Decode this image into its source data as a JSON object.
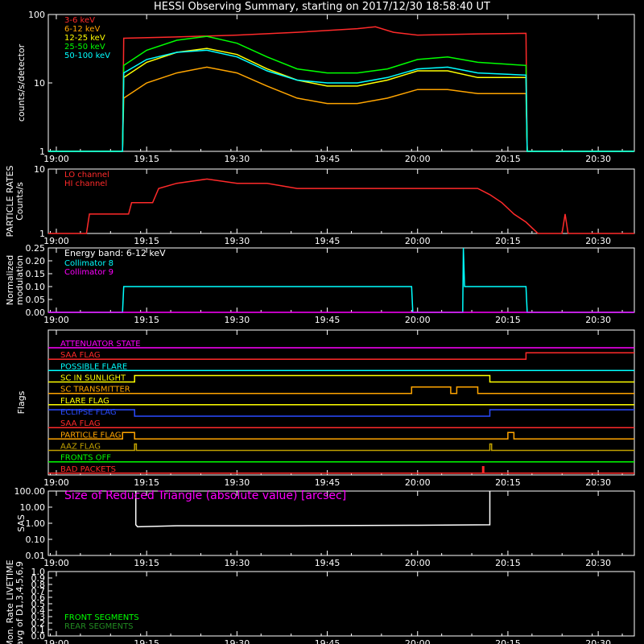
{
  "title": "HESSI Observing Summary, starting on 2017/12/30 18:58:40 UT",
  "x_ticks": [
    "19:00",
    "19:15",
    "19:30",
    "19:45",
    "20:00",
    "20:15",
    "20:30"
  ],
  "chart_data": [
    {
      "type": "line",
      "ylabel": "counts/s/detector",
      "yscale": "log",
      "ylim": [
        1,
        100
      ],
      "y_tick_labels": [
        "1",
        "10",
        "100"
      ],
      "xlim_minutes": [
        -1.33,
        96.0
      ],
      "series": [
        {
          "name": "3-6 keV",
          "color": "#ff2a2a",
          "points": [
            [
              -1.33,
              1
            ],
            [
              11,
              1
            ],
            [
              11.2,
              45
            ],
            [
              20,
              47
            ],
            [
              30,
              50
            ],
            [
              40,
              55
            ],
            [
              50,
              62
            ],
            [
              53,
              66
            ],
            [
              56,
              55
            ],
            [
              60,
              50
            ],
            [
              70,
              52
            ],
            [
              78,
              53
            ],
            [
              78.2,
              1
            ],
            [
              96,
              1
            ]
          ]
        },
        {
          "name": "6-12 keV",
          "color": "#ffa500",
          "points": [
            [
              -1.33,
              1
            ],
            [
              11,
              1
            ],
            [
              11.2,
              6
            ],
            [
              15,
              10
            ],
            [
              20,
              14
            ],
            [
              25,
              17
            ],
            [
              30,
              14
            ],
            [
              35,
              9
            ],
            [
              40,
              6
            ],
            [
              45,
              5
            ],
            [
              50,
              5
            ],
            [
              55,
              6
            ],
            [
              60,
              8
            ],
            [
              65,
              8
            ],
            [
              70,
              7
            ],
            [
              78,
              7
            ],
            [
              78.2,
              1
            ],
            [
              96,
              1
            ]
          ]
        },
        {
          "name": "12-25 keV",
          "color": "#ffff00",
          "points": [
            [
              -1.33,
              1
            ],
            [
              11,
              1
            ],
            [
              11.2,
              12
            ],
            [
              15,
              20
            ],
            [
              20,
              28
            ],
            [
              25,
              32
            ],
            [
              30,
              26
            ],
            [
              35,
              16
            ],
            [
              40,
              11
            ],
            [
              45,
              9
            ],
            [
              50,
              9
            ],
            [
              55,
              11
            ],
            [
              60,
              15
            ],
            [
              65,
              15
            ],
            [
              70,
              12
            ],
            [
              78,
              12
            ],
            [
              78.2,
              1
            ],
            [
              96,
              1
            ]
          ]
        },
        {
          "name": "25-50 keV",
          "color": "#00ff00",
          "points": [
            [
              -1.33,
              1
            ],
            [
              11,
              1
            ],
            [
              11.2,
              18
            ],
            [
              15,
              30
            ],
            [
              20,
              42
            ],
            [
              25,
              48
            ],
            [
              30,
              38
            ],
            [
              35,
              24
            ],
            [
              40,
              16
            ],
            [
              45,
              14
            ],
            [
              50,
              14
            ],
            [
              55,
              16
            ],
            [
              60,
              22
            ],
            [
              65,
              24
            ],
            [
              70,
              20
            ],
            [
              78,
              18
            ],
            [
              78.2,
              1
            ],
            [
              96,
              1
            ]
          ]
        },
        {
          "name": "50-100 keV",
          "color": "#00ffff",
          "points": [
            [
              -1.33,
              1
            ],
            [
              11,
              1
            ],
            [
              11.2,
              14
            ],
            [
              15,
              22
            ],
            [
              20,
              28
            ],
            [
              25,
              30
            ],
            [
              30,
              24
            ],
            [
              35,
              15
            ],
            [
              40,
              11
            ],
            [
              45,
              10
            ],
            [
              50,
              10
            ],
            [
              55,
              12
            ],
            [
              60,
              16
            ],
            [
              65,
              17
            ],
            [
              70,
              14
            ],
            [
              78,
              13
            ],
            [
              78.2,
              1
            ],
            [
              96,
              1
            ]
          ]
        }
      ]
    },
    {
      "type": "line",
      "ylabel": "PARTICLE RATES Counts/s",
      "yscale": "log",
      "ylim": [
        1,
        10
      ],
      "y_tick_labels": [
        "1",
        "10"
      ],
      "series": [
        {
          "name": "LO channel",
          "color": "#ff2a2a",
          "points": [
            [
              -1.33,
              1
            ],
            [
              5,
              1
            ],
            [
              5.5,
              2
            ],
            [
              8,
              2
            ],
            [
              8.5,
              2
            ],
            [
              12,
              2
            ],
            [
              12.5,
              3
            ],
            [
              16,
              3
            ],
            [
              17,
              5
            ],
            [
              20,
              6
            ],
            [
              25,
              7
            ],
            [
              30,
              6
            ],
            [
              35,
              6
            ],
            [
              40,
              5
            ],
            [
              45,
              5
            ],
            [
              50,
              5
            ],
            [
              55,
              5
            ],
            [
              60,
              5
            ],
            [
              65,
              5
            ],
            [
              70,
              5
            ],
            [
              72,
              4
            ],
            [
              74,
              3
            ],
            [
              76,
              2
            ],
            [
              78,
              1.5
            ],
            [
              80,
              1
            ],
            [
              84,
              1
            ],
            [
              84.5,
              2
            ],
            [
              85,
              1
            ],
            [
              96,
              1
            ]
          ]
        },
        {
          "name": "HI channel",
          "color": "#ff2a2a",
          "points": []
        }
      ]
    },
    {
      "type": "line",
      "ylabel": "Normalized modulation",
      "ylim": [
        0,
        0.25
      ],
      "y_tick_labels": [
        "0.00",
        "0.05",
        "0.10",
        "0.15",
        "0.20",
        "0.25"
      ],
      "legend_header": "Energy band: 6-12 keV",
      "series": [
        {
          "name": "Collimator 8",
          "color": "#00ffff",
          "points": [
            [
              -1.33,
              0
            ],
            [
              11,
              0
            ],
            [
              11.2,
              0.1
            ],
            [
              20,
              0.1
            ],
            [
              30,
              0.1
            ],
            [
              40,
              0.1
            ],
            [
              50,
              0.1
            ],
            [
              59,
              0.1
            ],
            [
              59.2,
              0
            ],
            [
              67.5,
              0
            ],
            [
              67.6,
              0.25
            ],
            [
              67.8,
              0.1
            ],
            [
              78,
              0.1
            ],
            [
              78.2,
              0
            ],
            [
              96,
              0
            ]
          ]
        },
        {
          "name": "Collimator 9",
          "color": "#ff00ff",
          "points": [
            [
              -1.33,
              0
            ],
            [
              96,
              0
            ]
          ]
        }
      ]
    },
    {
      "type": "line",
      "ylabel": "Flags",
      "flags": [
        {
          "name": "ATTENUATOR STATE",
          "color": "#ff00ff",
          "steps": [
            [
              -1.33,
              0
            ],
            [
              96,
              0
            ]
          ]
        },
        {
          "name": "SAA FLAG",
          "color": "#ff2a2a",
          "steps": [
            [
              -1.33,
              0
            ],
            [
              78,
              0
            ],
            [
              78,
              1
            ],
            [
              96,
              1
            ]
          ]
        },
        {
          "name": "POSSIBLE FLARE",
          "color": "#00ffff",
          "steps": [
            [
              -1.33,
              0
            ],
            [
              96,
              0
            ]
          ]
        },
        {
          "name": "SC IN SUNLIGHT",
          "color": "#ffff00",
          "steps": [
            [
              -1.33,
              0
            ],
            [
              13,
              0
            ],
            [
              13,
              1
            ],
            [
              72,
              1
            ],
            [
              72,
              0
            ],
            [
              96,
              0
            ]
          ]
        },
        {
          "name": "SC TRANSMITTER",
          "color": "#ffa500",
          "steps": [
            [
              -1.33,
              0
            ],
            [
              59,
              0
            ],
            [
              59,
              1
            ],
            [
              65.5,
              1
            ],
            [
              65.5,
              0
            ],
            [
              66.5,
              0
            ],
            [
              66.5,
              1
            ],
            [
              70,
              1
            ],
            [
              70,
              0
            ],
            [
              96,
              0
            ]
          ]
        },
        {
          "name": "FLARE FLAG",
          "color": "#ffff00",
          "steps": [
            [
              -1.33,
              0
            ],
            [
              96,
              0
            ]
          ]
        },
        {
          "name": "ECLIPSE FLAG",
          "color": "#2b4bff",
          "steps": [
            [
              -1.33,
              1
            ],
            [
              13,
              1
            ],
            [
              13,
              0
            ],
            [
              72,
              0
            ],
            [
              72,
              1
            ],
            [
              96,
              1
            ]
          ]
        },
        {
          "name": "SAA FLAG",
          "color": "#ff2a2a",
          "steps": [
            [
              -1.33,
              0
            ],
            [
              96,
              0
            ]
          ]
        },
        {
          "name": "PARTICLE FLAG",
          "color": "#ffa500",
          "steps": [
            [
              -1.33,
              0
            ],
            [
              11,
              0
            ],
            [
              11,
              1
            ],
            [
              13,
              1
            ],
            [
              13,
              0
            ],
            [
              75,
              0
            ],
            [
              75,
              1
            ],
            [
              76,
              1
            ],
            [
              76,
              0
            ],
            [
              96,
              0
            ]
          ]
        },
        {
          "name": "AAZ FLAG",
          "color": "#bfa000",
          "steps": [
            [
              -1.33,
              0
            ],
            [
              13,
              0
            ],
            [
              13,
              1
            ],
            [
              13.3,
              1
            ],
            [
              13.3,
              0
            ],
            [
              72,
              0
            ],
            [
              72,
              1
            ],
            [
              72.3,
              1
            ],
            [
              72.3,
              0
            ],
            [
              96,
              0
            ]
          ]
        },
        {
          "name": "FRONTS OFF",
          "color": "#00ff00",
          "steps": [
            [
              -1.33,
              0
            ],
            [
              96,
              0
            ]
          ]
        },
        {
          "name": "BAD PACKETS",
          "color": "#ff2a2a",
          "steps": [
            [
              -1.33,
              0
            ],
            [
              70.8,
              0
            ],
            [
              70.8,
              1
            ],
            [
              71,
              1
            ],
            [
              71,
              0
            ],
            [
              96,
              0
            ]
          ]
        }
      ]
    },
    {
      "type": "line",
      "ylabel": "SAS",
      "yscale": "log",
      "ylim": [
        0.01,
        100
      ],
      "y_tick_labels": [
        "100.00",
        "10.00",
        "1.00",
        "0.10",
        "0.01"
      ],
      "series": [
        {
          "name": "Size of Reduced Triangle (absolute value) [arcsec]",
          "color": "#ff00ff",
          "points": []
        },
        {
          "name": "sas-trace",
          "color": "#ffffff",
          "points": [
            [
              13.2,
              100
            ],
            [
              13.2,
              0.8
            ],
            [
              13.5,
              0.6
            ],
            [
              20,
              0.7
            ],
            [
              40,
              0.7
            ],
            [
              60,
              0.75
            ],
            [
              72,
              0.8
            ],
            [
              72,
              100
            ]
          ]
        }
      ]
    },
    {
      "type": "line",
      "ylabel": "Mon. Rate LIVETIME avg of D1,3,4,5,6,9",
      "ylim": [
        0,
        1.0
      ],
      "y_tick_labels": [
        "0.0",
        "0.1",
        "0.2",
        "0.3",
        "0.4",
        "0.5",
        "0.6",
        "0.7",
        "0.8",
        "0.9",
        "1.0"
      ],
      "series": [
        {
          "name": "FRONT SEGMENTS",
          "color": "#00ff00",
          "points": []
        },
        {
          "name": "REAR SEGMENTS",
          "color": "#228b22",
          "points": []
        }
      ]
    }
  ]
}
